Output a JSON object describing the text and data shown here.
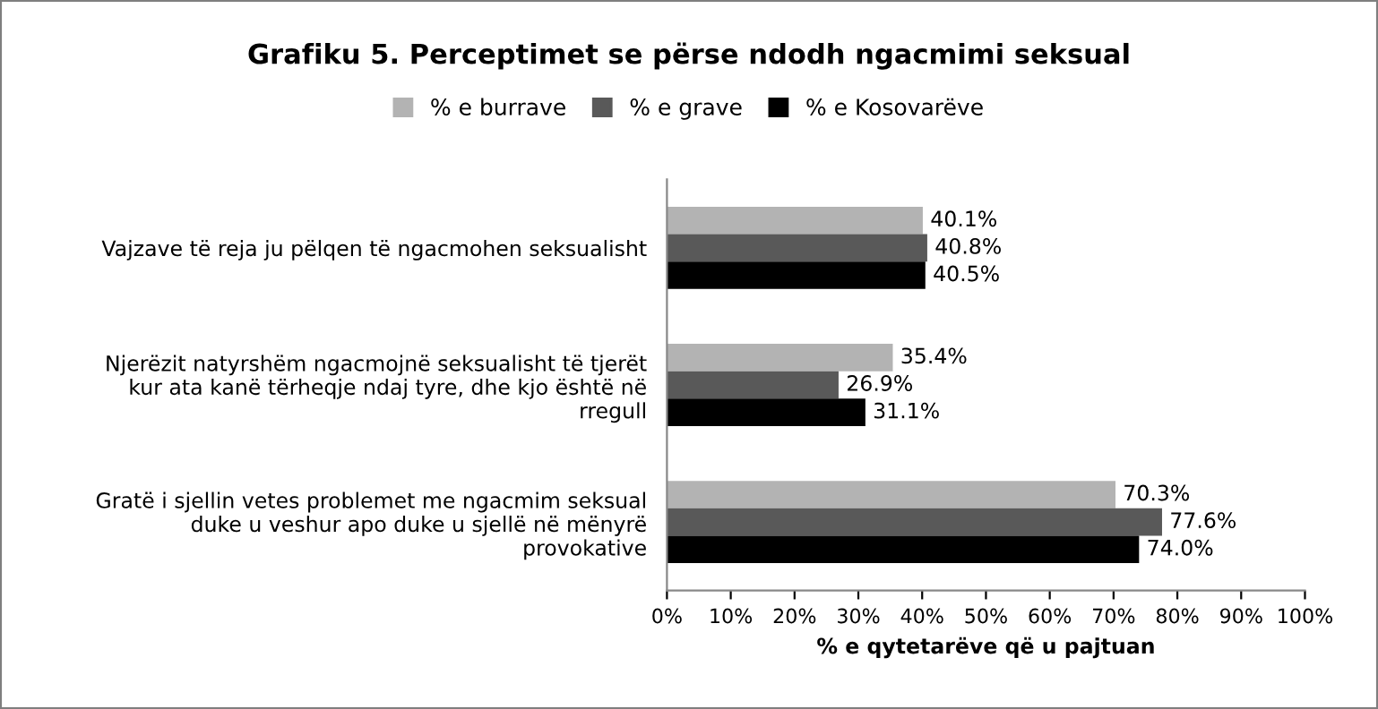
{
  "chart_data": {
    "type": "bar",
    "orientation": "horizontal",
    "title": "Grafiku 5. Perceptimet se përse ndodh ngacmimi seksual",
    "xlabel": "% e qytetarëve që u pajtuan",
    "categories": [
      "Vajzave të reja ju pëlqen të ngacmohen seksualisht",
      "Njerëzit natyrshëm ngacmojnë seksualisht të tjerët kur ata kanë tërheqje ndaj tyre, dhe kjo është në rregull",
      "Gratë i sjellin vetes problemet me ngacmim seksual duke u veshur apo duke u sjellë në mënyrë provokative"
    ],
    "series": [
      {
        "name": "% e burrave",
        "color": "#b3b3b3",
        "values": [
          40.1,
          35.4,
          70.3
        ],
        "value_labels": [
          "40.1%",
          "35.4%",
          "70.3%"
        ]
      },
      {
        "name": "% e grave",
        "color": "#595959",
        "values": [
          40.8,
          26.9,
          77.6
        ],
        "value_labels": [
          "40.8%",
          "26.9%",
          "77.6%"
        ]
      },
      {
        "name": "% e Kosovarëve",
        "color": "#000000",
        "values": [
          40.5,
          31.1,
          74.0
        ],
        "value_labels": [
          "40.5%",
          "31.1%",
          "74.0%"
        ]
      }
    ],
    "xlim": [
      0,
      100
    ],
    "xticks": [
      {
        "value": 0,
        "label": "0%"
      },
      {
        "value": 10,
        "label": "10%"
      },
      {
        "value": 20,
        "label": "20%"
      },
      {
        "value": 30,
        "label": "30%"
      },
      {
        "value": 40,
        "label": "40%"
      },
      {
        "value": 50,
        "label": "50%"
      },
      {
        "value": 60,
        "label": "60%"
      },
      {
        "value": 70,
        "label": "70%"
      },
      {
        "value": 80,
        "label": "80%"
      },
      {
        "value": 90,
        "label": "90%"
      },
      {
        "value": 100,
        "label": "100%"
      }
    ],
    "grid": false,
    "legend": "top"
  }
}
